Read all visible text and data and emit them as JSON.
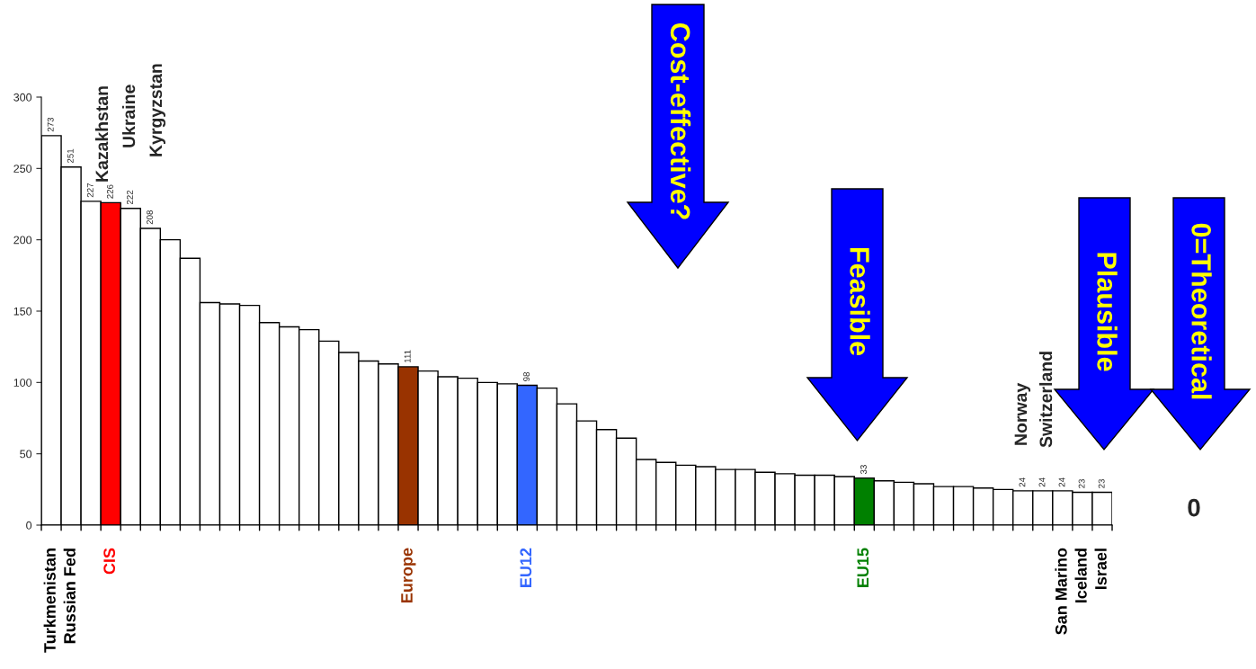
{
  "chart_data": {
    "type": "bar",
    "categories": [
      "Turkmenistan",
      "Russian Fed",
      null,
      "CIS",
      null,
      null,
      null,
      null,
      null,
      null,
      null,
      null,
      null,
      null,
      null,
      null,
      null,
      null,
      "Europe",
      null,
      null,
      null,
      null,
      null,
      "EU12",
      null,
      null,
      null,
      null,
      null,
      null,
      null,
      null,
      null,
      null,
      null,
      null,
      null,
      null,
      null,
      null,
      "EU15",
      null,
      null,
      null,
      null,
      null,
      null,
      null,
      null,
      null,
      "San Marino",
      "Iceland",
      "Israel"
    ],
    "values": [
      273,
      251,
      227,
      226,
      222,
      208,
      200,
      187,
      156,
      155,
      154,
      142,
      139,
      137,
      129,
      121,
      115,
      113,
      111,
      108,
      104,
      103,
      100,
      99,
      98,
      96,
      85,
      73,
      67,
      61,
      46,
      44,
      42,
      41,
      39,
      39,
      37,
      36,
      35,
      35,
      34,
      33,
      31,
      30,
      29,
      27,
      27,
      26,
      25,
      24,
      24,
      24,
      23,
      23
    ],
    "value_labels": [
      "273",
      "251",
      "227",
      "226",
      "222",
      "208",
      null,
      null,
      null,
      null,
      null,
      null,
      null,
      null,
      null,
      null,
      null,
      null,
      "111",
      null,
      null,
      null,
      null,
      null,
      "98",
      null,
      null,
      null,
      null,
      null,
      null,
      null,
      null,
      null,
      null,
      null,
      null,
      null,
      null,
      null,
      null,
      "33",
      null,
      null,
      null,
      null,
      null,
      null,
      null,
      "24",
      "24",
      "24",
      "23",
      "23"
    ],
    "colors": [
      "#ffffff",
      "#ffffff",
      "#ffffff",
      "#ff0000",
      "#ffffff",
      "#ffffff",
      "#ffffff",
      "#ffffff",
      "#ffffff",
      "#ffffff",
      "#ffffff",
      "#ffffff",
      "#ffffff",
      "#ffffff",
      "#ffffff",
      "#ffffff",
      "#ffffff",
      "#ffffff",
      "#993300",
      "#ffffff",
      "#ffffff",
      "#ffffff",
      "#ffffff",
      "#ffffff",
      "#3366ff",
      "#ffffff",
      "#ffffff",
      "#ffffff",
      "#ffffff",
      "#ffffff",
      "#ffffff",
      "#ffffff",
      "#ffffff",
      "#ffffff",
      "#ffffff",
      "#ffffff",
      "#ffffff",
      "#ffffff",
      "#ffffff",
      "#ffffff",
      "#ffffff",
      "#008000",
      "#ffffff",
      "#ffffff",
      "#ffffff",
      "#ffffff",
      "#ffffff",
      "#ffffff",
      "#ffffff",
      "#ffffff",
      "#ffffff",
      "#ffffff",
      "#ffffff",
      "#ffffff"
    ],
    "ylim": [
      0,
      300
    ],
    "yticks": [
      0,
      50,
      100,
      150,
      200,
      250,
      300
    ],
    "annotations": [
      "Kazakhstan",
      "Ukraine",
      "Kyrgyzstan",
      "Norway",
      "Switzerland",
      "Cost-effective?",
      "Feasible",
      "Plausible",
      "0=Theoretical",
      "0"
    ]
  }
}
